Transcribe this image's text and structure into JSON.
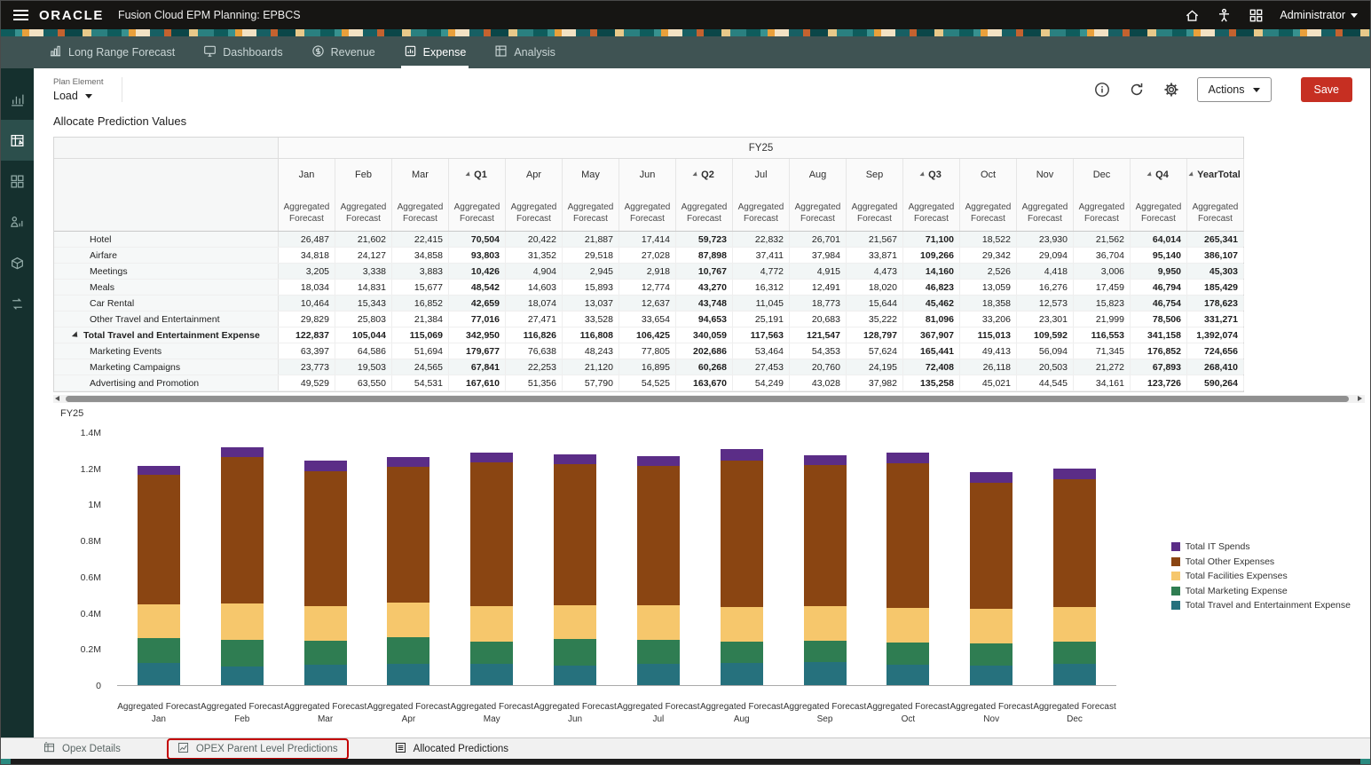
{
  "header": {
    "brand": "ORACLE",
    "app_title": "Fusion Cloud EPM Planning:  EPBCS",
    "user": "Administrator",
    "icons": [
      "menu-icon",
      "home-icon",
      "accessibility-icon",
      "waffle-grid-icon",
      "caret-down-icon"
    ]
  },
  "nav": {
    "tabs": [
      {
        "label": "Long Range Forecast",
        "active": false
      },
      {
        "label": "Dashboards",
        "active": false
      },
      {
        "label": "Revenue",
        "active": false
      },
      {
        "label": "Expense",
        "active": true
      },
      {
        "label": "Analysis",
        "active": false
      }
    ]
  },
  "toolbar": {
    "plan_element_label": "Plan Element",
    "plan_element_value": "Load",
    "icons": [
      "info-icon",
      "refresh-icon",
      "gear-icon"
    ],
    "actions_label": "Actions",
    "save_label": "Save"
  },
  "page_title": "Allocate Prediction Values",
  "grid": {
    "year_header": "FY25",
    "column_subtitle": "Aggregated Forecast",
    "columns": [
      {
        "label": "Jan"
      },
      {
        "label": "Feb"
      },
      {
        "label": "Mar"
      },
      {
        "label": "Q1",
        "expandable": true,
        "total": true
      },
      {
        "label": "Apr"
      },
      {
        "label": "May"
      },
      {
        "label": "Jun"
      },
      {
        "label": "Q2",
        "expandable": true,
        "total": true
      },
      {
        "label": "Jul"
      },
      {
        "label": "Aug"
      },
      {
        "label": "Sep"
      },
      {
        "label": "Q3",
        "expandable": true,
        "total": true
      },
      {
        "label": "Oct"
      },
      {
        "label": "Nov"
      },
      {
        "label": "Dec"
      },
      {
        "label": "Q4",
        "expandable": true,
        "total": true
      },
      {
        "label": "YearTotal",
        "expandable": true,
        "total": true
      }
    ],
    "rows": [
      {
        "label": "Hotel",
        "values": [
          "26,487",
          "21,602",
          "22,415",
          "70,504",
          "20,422",
          "21,887",
          "17,414",
          "59,723",
          "22,832",
          "26,701",
          "21,567",
          "71,100",
          "18,522",
          "23,930",
          "21,562",
          "64,014",
          "265,341"
        ]
      },
      {
        "label": "Airfare",
        "values": [
          "34,818",
          "24,127",
          "34,858",
          "93,803",
          "31,352",
          "29,518",
          "27,028",
          "87,898",
          "37,411",
          "37,984",
          "33,871",
          "109,266",
          "29,342",
          "29,094",
          "36,704",
          "95,140",
          "386,107"
        ]
      },
      {
        "label": "Meetings",
        "values": [
          "3,205",
          "3,338",
          "3,883",
          "10,426",
          "4,904",
          "2,945",
          "2,918",
          "10,767",
          "4,772",
          "4,915",
          "4,473",
          "14,160",
          "2,526",
          "4,418",
          "3,006",
          "9,950",
          "45,303"
        ]
      },
      {
        "label": "Meals",
        "values": [
          "18,034",
          "14,831",
          "15,677",
          "48,542",
          "14,603",
          "15,893",
          "12,774",
          "43,270",
          "16,312",
          "12,491",
          "18,020",
          "46,823",
          "13,059",
          "16,276",
          "17,459",
          "46,794",
          "185,429"
        ]
      },
      {
        "label": "Car Rental",
        "values": [
          "10,464",
          "15,343",
          "16,852",
          "42,659",
          "18,074",
          "13,037",
          "12,637",
          "43,748",
          "11,045",
          "18,773",
          "15,644",
          "45,462",
          "18,358",
          "12,573",
          "15,823",
          "46,754",
          "178,623"
        ]
      },
      {
        "label": "Other Travel and Entertainment",
        "values": [
          "29,829",
          "25,803",
          "21,384",
          "77,016",
          "27,471",
          "33,528",
          "33,654",
          "94,653",
          "25,191",
          "20,683",
          "35,222",
          "81,096",
          "33,206",
          "23,301",
          "21,999",
          "78,506",
          "331,271"
        ]
      },
      {
        "label": "Total Travel and Entertainment Expense",
        "bold": true,
        "collapsible": true,
        "values": [
          "122,837",
          "105,044",
          "115,069",
          "342,950",
          "116,826",
          "116,808",
          "106,425",
          "340,059",
          "117,563",
          "121,547",
          "128,797",
          "367,907",
          "115,013",
          "109,592",
          "116,553",
          "341,158",
          "1,392,074"
        ]
      },
      {
        "label": "Marketing Events",
        "values": [
          "63,397",
          "64,586",
          "51,694",
          "179,677",
          "76,638",
          "48,243",
          "77,805",
          "202,686",
          "53,464",
          "54,353",
          "57,624",
          "165,441",
          "49,413",
          "56,094",
          "71,345",
          "176,852",
          "724,656"
        ]
      },
      {
        "label": "Marketing Campaigns",
        "values": [
          "23,773",
          "19,503",
          "24,565",
          "67,841",
          "22,253",
          "21,120",
          "16,895",
          "60,268",
          "27,453",
          "20,760",
          "24,195",
          "72,408",
          "26,118",
          "20,503",
          "21,272",
          "67,893",
          "268,410"
        ]
      },
      {
        "label": "Advertising and Promotion",
        "values": [
          "49,529",
          "63,550",
          "54,531",
          "167,610",
          "51,356",
          "57,790",
          "54,525",
          "163,670",
          "54,249",
          "43,028",
          "37,982",
          "135,258",
          "45,021",
          "44,545",
          "34,161",
          "123,726",
          "590,264"
        ]
      }
    ]
  },
  "chart_data": {
    "type": "bar",
    "stacked": true,
    "title": "FY25",
    "x_sublabel": "Aggregated Forecast",
    "categories": [
      "Jan",
      "Feb",
      "Mar",
      "Apr",
      "May",
      "Jun",
      "Jul",
      "Aug",
      "Sep",
      "Oct",
      "Nov",
      "Dec"
    ],
    "series": [
      {
        "name": "Total Travel and Entertainment Expense",
        "color": "#26717d",
        "values": [
          122837,
          105044,
          115069,
          116826,
          116808,
          106425,
          117563,
          121547,
          128797,
          115013,
          109592,
          116553
        ]
      },
      {
        "name": "Total Marketing Expense",
        "color": "#2f7d52",
        "values": [
          136699,
          147639,
          130790,
          150247,
          127153,
          149225,
          135166,
          118141,
          119801,
          120552,
          121142,
          126778
        ]
      },
      {
        "name": "Total Facilities Expenses",
        "color": "#f6c76c",
        "values": [
          190000,
          200000,
          195000,
          190000,
          195000,
          190000,
          190000,
          195000,
          190000,
          195000,
          195000,
          190000
        ]
      },
      {
        "name": "Total Other Expenses",
        "color": "#8a4512",
        "values": [
          720000,
          815000,
          745000,
          755000,
          800000,
          780000,
          775000,
          815000,
          785000,
          800000,
          700000,
          710000
        ]
      },
      {
        "name": "Total IT Spends",
        "color": "#5b2d87",
        "values": [
          50000,
          55000,
          60000,
          55000,
          55000,
          55000,
          55000,
          60000,
          55000,
          60000,
          60000,
          58000
        ]
      }
    ],
    "legend": [
      "Total IT Spends",
      "Total Other Expenses",
      "Total Facilities Expenses",
      "Total Marketing Expense",
      "Total Travel and Entertainment Expense"
    ],
    "legend_position": "right",
    "grid_lines": false,
    "ylim": [
      0,
      1400000
    ],
    "yticks": [
      {
        "value": 0,
        "label": "0"
      },
      {
        "value": 200000,
        "label": "0.2M"
      },
      {
        "value": 400000,
        "label": "0.4M"
      },
      {
        "value": 600000,
        "label": "0.6M"
      },
      {
        "value": 800000,
        "label": "0.8M"
      },
      {
        "value": 1000000,
        "label": "1M"
      },
      {
        "value": 1200000,
        "label": "1.2M"
      },
      {
        "value": 1400000,
        "label": "1.4M"
      }
    ]
  },
  "bottom_tabs": [
    {
      "label": "Opex Details",
      "highlighted": false
    },
    {
      "label": "OPEX Parent Level Predictions",
      "highlighted": true
    },
    {
      "label": "Allocated Predictions",
      "highlighted": false
    }
  ],
  "colors": {
    "save_button": "#c62f22",
    "annotation_highlight": "#c40000",
    "topbar_bg": "#161513",
    "navbar_bg": "#3f5353",
    "sidebar_bg": "#15302e"
  }
}
